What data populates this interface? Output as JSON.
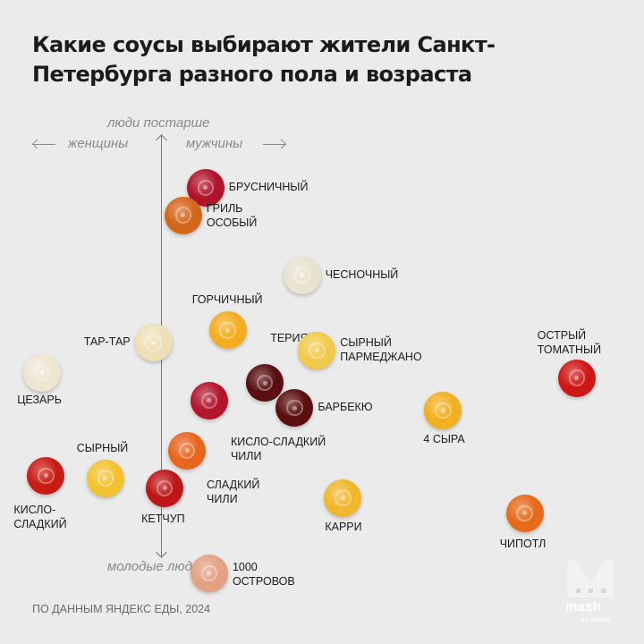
{
  "title": "Какие соусы выбирают жители Санкт-Петербурга разного пола и возраста",
  "axes": {
    "top": "люди постарше",
    "bottom": "молодые люди",
    "left": "женщины",
    "right": "мужчины"
  },
  "source": "ПО ДАННЫМ ЯНДЕКС ЕДЫ, 2024",
  "logo": {
    "text": "mash",
    "sub": "на мойке"
  },
  "colors": {
    "background": "#ebebeb",
    "text": "#1b1b1b",
    "axis": "#8a8a8a"
  },
  "chart_data": {
    "type": "scatter",
    "title": "Какие соусы выбирают жители Санкт-Петербурга разного пола и возраста",
    "xlabel": "женщины ← → мужчины",
    "ylabel": "молодые люди ↓ ↑ люди постарше",
    "grid": false,
    "points": [
      {
        "name": "Брусничный",
        "x": 0.6,
        "y": 4.2,
        "color": "#b0142a"
      },
      {
        "name": "Гриль особый",
        "x": 0.3,
        "y": 3.65,
        "color": "#d4661c"
      },
      {
        "name": "Чесночный",
        "x": 1.9,
        "y": 2.45,
        "color": "#e7e3d0"
      },
      {
        "name": "Горчичный",
        "x": 0.9,
        "y": 1.35,
        "color": "#f3ad1e"
      },
      {
        "name": "Терияки",
        "x": 1.4,
        "y": 0.3,
        "color": "#5a0e10"
      },
      {
        "name": "Сырный пармеджано",
        "x": 2.1,
        "y": 0.95,
        "color": "#f1c94a"
      },
      {
        "name": "Барбекю",
        "x": 1.8,
        "y": -0.2,
        "color": "#5b0f0e"
      },
      {
        "name": "Тар-тар",
        "x": -0.1,
        "y": 1.1,
        "color": "#ede0b6"
      },
      {
        "name": "Цезарь",
        "x": -1.6,
        "y": 0.5,
        "color": "#efe6d1"
      },
      {
        "name": "Кисло-сладкий чили",
        "x": 0.65,
        "y": -0.05,
        "color": "#b3162c"
      },
      {
        "name": "Сладкий чили",
        "x": 0.35,
        "y": -1.05,
        "color": "#e8651d"
      },
      {
        "name": "Сырный",
        "x": -0.75,
        "y": -1.6,
        "color": "#f4c230"
      },
      {
        "name": "Кисло-сладкий",
        "x": -1.55,
        "y": -1.55,
        "color": "#c81b14"
      },
      {
        "name": "Кетчуп",
        "x": 0.05,
        "y": -1.8,
        "color": "#be1518"
      },
      {
        "name": "Карри",
        "x": 2.45,
        "y": -2.0,
        "color": "#f1b62b"
      },
      {
        "name": "1000 островов",
        "x": 0.65,
        "y": -3.5,
        "color": "#e4a083"
      },
      {
        "name": "4 сыра",
        "x": 3.8,
        "y": -0.25,
        "color": "#f2b020"
      },
      {
        "name": "Острый томатный",
        "x": 5.6,
        "y": 0.4,
        "color": "#cf1715"
      },
      {
        "name": "Чипотл",
        "x": 4.9,
        "y": -2.3,
        "color": "#e56b1a"
      }
    ]
  },
  "label_text": {
    "Брусничный": "БРУСНИЧНЫЙ",
    "Гриль особый": "ГРИЛЬ\nОСОБЫЙ",
    "Чесночный": "ЧЕСНОЧНЫЙ",
    "Горчичный": "ГОРЧИЧНЫЙ",
    "Терияки": "ТЕРИЯКИ",
    "Сырный пармеджано": "СЫРНЫЙ\nПАРМЕДЖАНО",
    "Барбекю": "БАРБЕКЮ",
    "Тар-тар": "ТАР-ТАР",
    "Цезарь": "ЦЕЗАРЬ",
    "Кисло-сладкий чили": "КИСЛО-СЛАДКИЙ\nЧИЛИ",
    "Сладкий чили": "СЛАДКИЙ\nЧИЛИ",
    "Сырный": "СЫРНЫЙ",
    "Кисло-сладкий": "КИСЛО-\nСЛАДКИЙ",
    "Кетчуп": "КЕТЧУП",
    "Карри": "КАРРИ",
    "1000 островов": "1000\nОСТРОВОВ",
    "4 сыра": "4 СЫРА",
    "Острый томатный": "ОСТРЫЙ\nТОМАТНЫЙ",
    "Чипотл": "ЧИПОТЛ"
  }
}
